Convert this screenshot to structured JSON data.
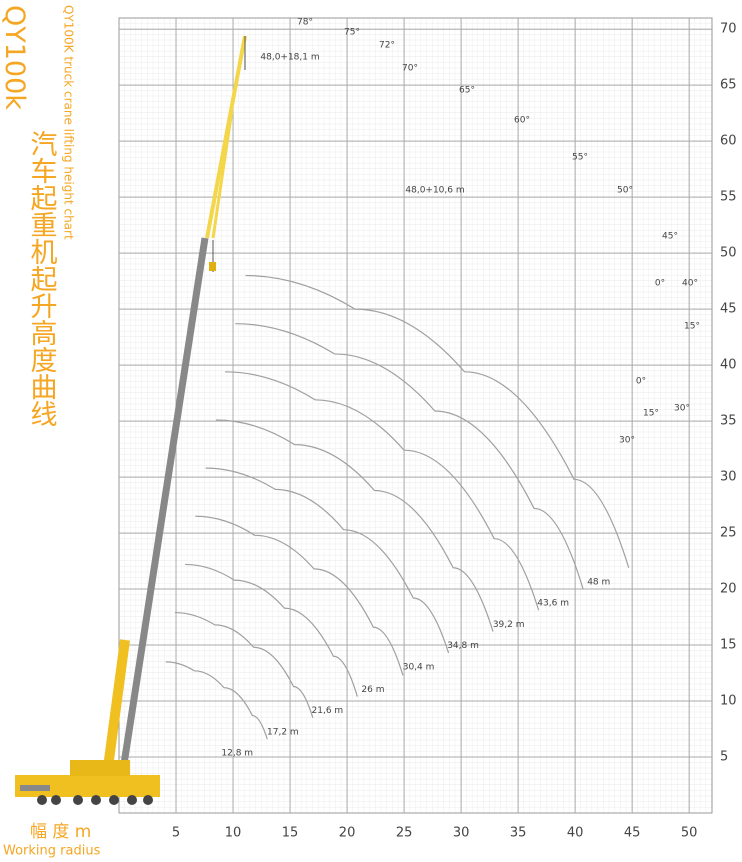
{
  "chart_data": {
    "type": "line",
    "title": "QY100k",
    "subtitle_cn": "汽车起重机起升高度曲线",
    "subtitle": "QY100K truck crane lifting height chart",
    "xlabel_cn": "幅 度 m",
    "xlabel": "Working radius",
    "xlim": [
      0,
      52
    ],
    "ylim": [
      0,
      71
    ],
    "xticks": [
      5,
      10,
      15,
      20,
      25,
      30,
      35,
      40,
      45,
      50
    ],
    "yticks": [
      5,
      10,
      15,
      20,
      25,
      30,
      35,
      40,
      45,
      50,
      55,
      60,
      65,
      70
    ],
    "grid": true,
    "series": [
      {
        "name": "12,8 m",
        "color": "#a0a0a0",
        "x": [
          4.1,
          6.6,
          9.2,
          11.7,
          13.0
        ],
        "values": [
          13.5,
          12.7,
          11.2,
          8.7,
          6.6
        ]
      },
      {
        "name": "17,2 m",
        "color": "#a0a0a0",
        "x": [
          4.9,
          8.4,
          11.8,
          15.3,
          17.0
        ],
        "values": [
          17.9,
          16.8,
          14.8,
          11.3,
          8.5
        ]
      },
      {
        "name": "21,6 m",
        "color": "#a0a0a0",
        "x": [
          5.8,
          10.1,
          14.5,
          18.8,
          20.9
        ],
        "values": [
          22.2,
          20.8,
          18.3,
          14.0,
          10.4
        ]
      },
      {
        "name": "26 m",
        "color": "#a0a0a0",
        "x": [
          6.7,
          11.9,
          17.1,
          22.3,
          24.9
        ],
        "values": [
          26.5,
          24.8,
          21.8,
          16.6,
          12.3
        ]
      },
      {
        "name": "30,4 m",
        "color": "#a0a0a0",
        "x": [
          7.6,
          13.7,
          19.7,
          25.8,
          28.9
        ],
        "values": [
          30.8,
          28.9,
          25.3,
          19.2,
          14.3
        ]
      },
      {
        "name": "34,8 m",
        "color": "#a0a0a0",
        "x": [
          8.5,
          15.4,
          22.4,
          29.3,
          32.8
        ],
        "values": [
          35.1,
          32.9,
          28.8,
          21.9,
          16.2
        ]
      },
      {
        "name": "39,2 m",
        "color": "#a0a0a0",
        "x": [
          9.3,
          17.2,
          25.0,
          32.9,
          36.8
        ],
        "values": [
          39.4,
          36.9,
          32.4,
          24.5,
          18.1
        ]
      },
      {
        "name": "43,6 m",
        "color": "#a0a0a0",
        "x": [
          10.2,
          18.9,
          27.7,
          36.4,
          40.7
        ],
        "values": [
          43.7,
          41.0,
          35.9,
          27.2,
          20.0
        ]
      },
      {
        "name": "48 m",
        "color": "#a0a0a0",
        "x": [
          11.1,
          20.7,
          30.3,
          39.9,
          44.7
        ],
        "values": [
          48.0,
          45.0,
          39.4,
          29.8,
          21.9
        ]
      }
    ],
    "annotations": [
      "78°",
      "75°",
      "72°",
      "70°",
      "65°",
      "60°",
      "55°",
      "50°",
      "45°",
      "0°",
      "40°",
      "15°",
      "0°",
      "15°",
      "30°",
      "30°",
      "48,0+18,1 m",
      "48,0+10,6 m"
    ]
  }
}
